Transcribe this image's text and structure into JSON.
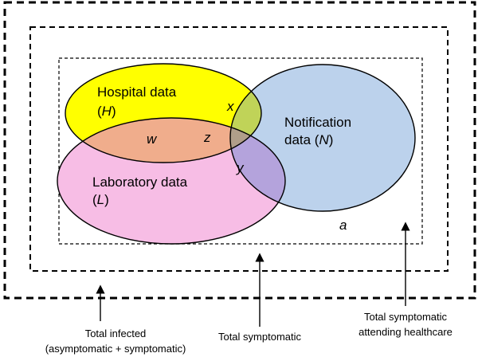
{
  "colors": {
    "hospital": "#ffff00",
    "notification": "#bcd2ec",
    "laboratory": "#f7bde5",
    "hospital_lab_overlap": "#f0ad8c",
    "hospital_notification_overlap": "#c0d358",
    "lab_notification_overlap": "#b4a3dc",
    "triple_overlap": "#b09e8a",
    "outline": "#000000"
  },
  "sets": {
    "hospital": {
      "line1": "Hospital data",
      "line2_open": "(",
      "line2_var": "H",
      "line2_close": ")"
    },
    "notification": {
      "line1": "Notification",
      "line2_prefix": "data (",
      "line2_var": "N",
      "line2_close": ")"
    },
    "laboratory": {
      "line1": "Laboratory data",
      "line2_open": "(",
      "line2_var": "L",
      "line2_close": ")"
    }
  },
  "regions": {
    "hospital_lab": "w",
    "hospital_notification": "x",
    "lab_notification": "y",
    "all_three": "z",
    "unobserved": "a"
  },
  "populations": {
    "total_infected": {
      "line1": "Total infected",
      "line2": "(asymptomatic + symptomatic)"
    },
    "total_symptomatic": {
      "line1": "Total symptomatic"
    },
    "attending_healthcare": {
      "line1": "Total symptomatic",
      "line2": "attending healthcare"
    }
  }
}
